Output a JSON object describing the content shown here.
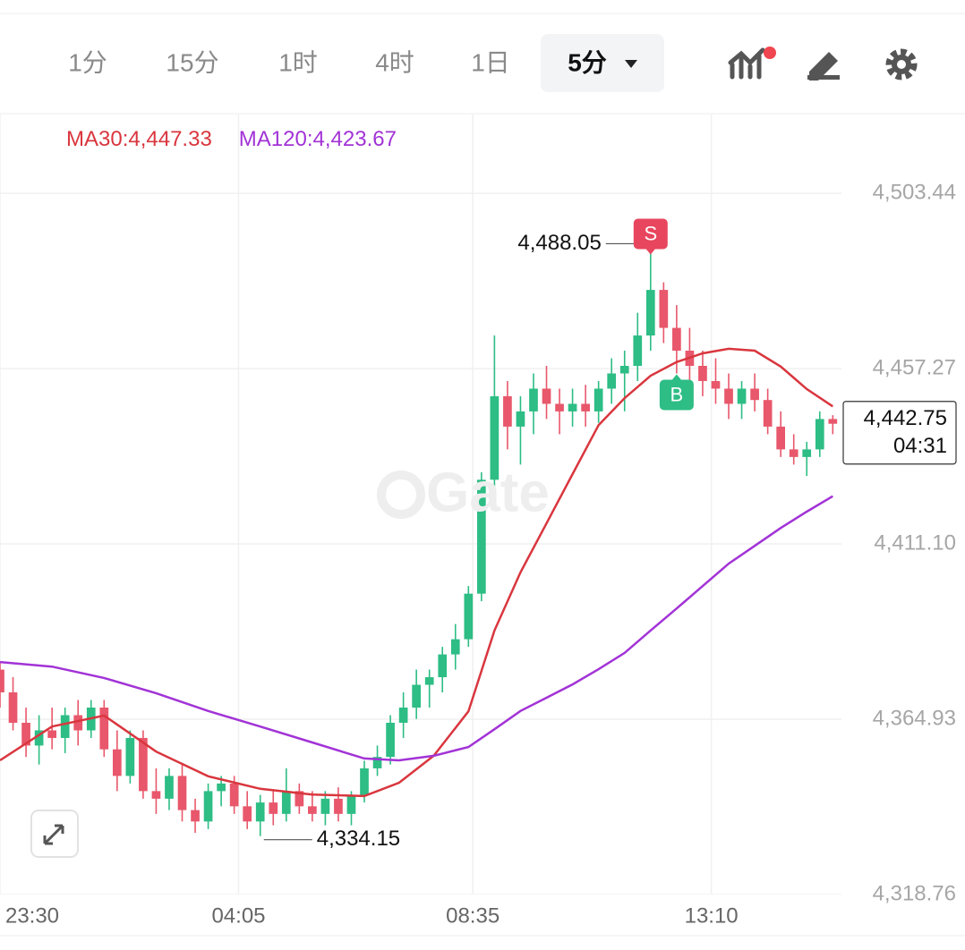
{
  "toolbar": {
    "intervals": [
      "1分",
      "15分",
      "1时",
      "4时",
      "1日"
    ],
    "selected": "5分"
  },
  "chart_data": {
    "type": "candlestick",
    "watermark": "Gate",
    "up_color": "#2dbd85",
    "down_color": "#e8576b",
    "grid": true,
    "xlim": [
      "23:30",
      "15:40"
    ],
    "xticks": [
      "23:30",
      "04:05",
      "08:35",
      "13:10"
    ],
    "ylim": [
      4318.76,
      4524.2
    ],
    "yticks": [
      {
        "value": 4318.76,
        "label": "4,318.76"
      },
      {
        "value": 4364.93,
        "label": "4,364.93"
      },
      {
        "value": 4411.1,
        "label": "4,411.10"
      },
      {
        "value": 4457.27,
        "label": "4,457.27"
      },
      {
        "value": 4503.44,
        "label": "4,503.44"
      }
    ],
    "x": [
      "23:30",
      "23:45",
      "00:00",
      "00:15",
      "00:30",
      "00:45",
      "01:00",
      "01:15",
      "01:30",
      "01:45",
      "02:00",
      "02:15",
      "02:30",
      "02:45",
      "03:00",
      "03:15",
      "03:30",
      "03:45",
      "04:00",
      "04:15",
      "04:30",
      "04:45",
      "05:00",
      "05:15",
      "05:30",
      "05:45",
      "06:00",
      "06:15",
      "06:30",
      "06:45",
      "07:00",
      "07:15",
      "07:30",
      "07:45",
      "08:00",
      "08:15",
      "08:30",
      "08:45",
      "09:00",
      "09:15",
      "09:30",
      "09:45",
      "10:00",
      "10:15",
      "10:30",
      "10:45",
      "11:00",
      "11:15",
      "11:30",
      "11:45",
      "12:00",
      "12:15",
      "12:30",
      "12:45",
      "13:00",
      "13:15",
      "13:30",
      "13:45",
      "14:00",
      "14:15",
      "14:30",
      "14:45",
      "15:00",
      "15:15",
      "15:30"
    ],
    "ohlc": [
      [
        4378,
        4380,
        4368,
        4372
      ],
      [
        4372,
        4376,
        4362,
        4364
      ],
      [
        4364,
        4368,
        4355,
        4358
      ],
      [
        4358,
        4366,
        4353,
        4362
      ],
      [
        4362,
        4368,
        4357,
        4360
      ],
      [
        4360,
        4368,
        4356,
        4366
      ],
      [
        4366,
        4370,
        4358,
        4362
      ],
      [
        4362,
        4370,
        4360,
        4368
      ],
      [
        4368,
        4370,
        4355,
        4357
      ],
      [
        4357,
        4362,
        4346,
        4350
      ],
      [
        4350,
        4362,
        4348,
        4360
      ],
      [
        4360,
        4362,
        4344,
        4346
      ],
      [
        4346,
        4352,
        4340,
        4344
      ],
      [
        4344,
        4352,
        4341,
        4350
      ],
      [
        4350,
        4353,
        4338,
        4341
      ],
      [
        4341,
        4344,
        4335,
        4338
      ],
      [
        4338,
        4348,
        4336,
        4346
      ],
      [
        4346,
        4350,
        4342,
        4348
      ],
      [
        4348,
        4350,
        4340,
        4342
      ],
      [
        4342,
        4346,
        4336,
        4338
      ],
      [
        4338,
        4345,
        4334.15,
        4343
      ],
      [
        4343,
        4346,
        4337,
        4340
      ],
      [
        4340,
        4352,
        4338,
        4346
      ],
      [
        4346,
        4348,
        4340,
        4342
      ],
      [
        4342,
        4346,
        4338,
        4340
      ],
      [
        4340,
        4346,
        4337,
        4344
      ],
      [
        4344,
        4347,
        4338,
        4340
      ],
      [
        4340,
        4346,
        4337,
        4345
      ],
      [
        4345,
        4354,
        4343,
        4352
      ],
      [
        4352,
        4358,
        4350,
        4355
      ],
      [
        4355,
        4366,
        4353,
        4364
      ],
      [
        4364,
        4372,
        4360,
        4368
      ],
      [
        4368,
        4378,
        4365,
        4374
      ],
      [
        4374,
        4378,
        4368,
        4376
      ],
      [
        4376,
        4384,
        4372,
        4382
      ],
      [
        4382,
        4390,
        4378,
        4386
      ],
      [
        4386,
        4400,
        4384,
        4398
      ],
      [
        4398,
        4430,
        4396,
        4428
      ],
      [
        4428,
        4466,
        4426,
        4450
      ],
      [
        4450,
        4454,
        4436,
        4442
      ],
      [
        4442,
        4450,
        4432,
        4446
      ],
      [
        4446,
        4456,
        4440,
        4452
      ],
      [
        4452,
        4458,
        4444,
        4448
      ],
      [
        4448,
        4452,
        4440,
        4446
      ],
      [
        4446,
        4452,
        4442,
        4448
      ],
      [
        4448,
        4453,
        4442,
        4446
      ],
      [
        4446,
        4454,
        4443,
        4452
      ],
      [
        4452,
        4460,
        4448,
        4456
      ],
      [
        4456,
        4462,
        4446,
        4458
      ],
      [
        4458,
        4472,
        4454,
        4466
      ],
      [
        4466,
        4488.05,
        4462,
        4478
      ],
      [
        4478,
        4480,
        4464,
        4468
      ],
      [
        4468,
        4474,
        4456,
        4462
      ],
      [
        4462,
        4468,
        4452,
        4458
      ],
      [
        4458,
        4462,
        4450,
        4454
      ],
      [
        4454,
        4460,
        4448,
        4452
      ],
      [
        4452,
        4456,
        4444,
        4448
      ],
      [
        4448,
        4454,
        4444,
        4452
      ],
      [
        4452,
        4456,
        4446,
        4449
      ],
      [
        4449,
        4452,
        4440,
        4442
      ],
      [
        4442,
        4446,
        4434,
        4436
      ],
      [
        4436,
        4440,
        4432,
        4434
      ],
      [
        4434,
        4438,
        4429,
        4436
      ],
      [
        4436,
        4446,
        4434,
        4444
      ],
      [
        4444,
        4445,
        4440,
        4442.75
      ]
    ],
    "series": [
      {
        "name": "MA30:4,447.33",
        "color": "#d9363e",
        "x": [
          "23:30",
          "00:30",
          "01:30",
          "02:30",
          "03:30",
          "04:30",
          "05:30",
          "06:30",
          "07:10",
          "07:50",
          "08:30",
          "09:00",
          "09:30",
          "10:00",
          "10:30",
          "11:00",
          "11:30",
          "12:00",
          "12:30",
          "13:00",
          "13:30",
          "14:00",
          "14:30",
          "15:00",
          "15:30"
        ],
        "values": [
          4354.1,
          4363.0,
          4365.9,
          4356.4,
          4349.9,
          4346.6,
          4345.1,
          4344.7,
          4348.2,
          4355.3,
          4367.0,
          4388.3,
          4403.6,
          4416.5,
          4429.5,
          4442.4,
          4449.5,
          4455.4,
          4459.0,
          4461.3,
          4462.5,
          4462.0,
          4457.8,
          4451.9,
          4447.33
        ]
      },
      {
        "name": "MA120:4,423.67",
        "color": "#a233d6",
        "x": [
          "23:30",
          "00:30",
          "01:30",
          "02:30",
          "03:30",
          "04:30",
          "05:30",
          "06:30",
          "07:10",
          "07:50",
          "08:30",
          "09:00",
          "09:30",
          "10:00",
          "10:30",
          "11:00",
          "11:30",
          "12:00",
          "12:30",
          "13:00",
          "13:30",
          "14:00",
          "14:30",
          "15:00",
          "15:30"
        ],
        "values": [
          4380.0,
          4378.8,
          4375.8,
          4371.8,
          4367.1,
          4363.0,
          4358.8,
          4354.6,
          4354.1,
          4355.3,
          4357.6,
          4362.3,
          4367.1,
          4370.6,
          4374.1,
          4378.1,
          4382.4,
          4388.3,
          4394.1,
          4400.0,
          4405.9,
          4410.6,
          4415.3,
          4419.6,
          4423.67
        ]
      }
    ],
    "high_label": {
      "value": 4488.05,
      "label": "4,488.05",
      "x": "12:00"
    },
    "low_label": {
      "value": 4334.15,
      "label": "4,334.15",
      "x": "04:30"
    },
    "signals": [
      {
        "label": "S",
        "x": "12:00",
        "color": "#e8465e"
      },
      {
        "label": "B",
        "x": "12:30",
        "color": "#2dbd85"
      }
    ],
    "last_price": {
      "value": 4442.75,
      "label": "4,442.75",
      "countdown": "04:31"
    }
  }
}
